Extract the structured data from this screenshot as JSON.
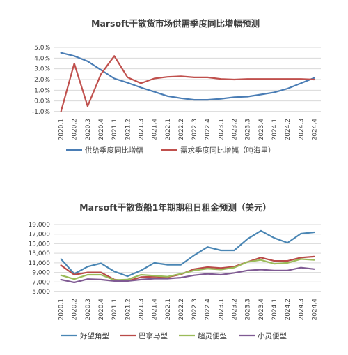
{
  "colors": {
    "supply": "#4a7db5",
    "demand": "#c0504d",
    "capesize": "#4a86b4",
    "panamax": "#b94a48",
    "supramax": "#9bbb59",
    "handysize": "#7f5a93",
    "grid": "#d9d9d9",
    "axis": "#bfbfbf"
  },
  "chart_data": [
    {
      "type": "line",
      "title": "Marsoft干散货市场供需季度同比增幅预测",
      "categories": [
        "2020.1",
        "2020.2",
        "2020.3",
        "2020.4",
        "2021.1",
        "2021.2",
        "2021.3",
        "2021.4",
        "2022.1",
        "2022.2",
        "2022.3",
        "2022.4",
        "2023.1",
        "2023.2",
        "2023.3",
        "2023.4",
        "2024.1",
        "2024.2",
        "2024.3",
        "2024.4"
      ],
      "y_ticks": [
        "5.0%",
        "4.0%",
        "3.0%",
        "2.0%",
        "1.0%",
        "0.0%",
        "-1.0%"
      ],
      "ylim": [
        -1.0,
        5.0
      ],
      "unit": "%",
      "grid": true,
      "legend_position": "bottom",
      "series": [
        {
          "name": "供给季度同比增幅",
          "color_key": "supply",
          "values": [
            4.5,
            4.2,
            3.7,
            2.9,
            2.1,
            1.7,
            1.25,
            0.85,
            0.45,
            0.25,
            0.1,
            0.1,
            0.2,
            0.35,
            0.4,
            0.6,
            0.8,
            1.15,
            1.65,
            2.15
          ]
        },
        {
          "name": "需求季度同比增幅（吨海里）",
          "color_key": "demand",
          "values": [
            -1.0,
            3.5,
            -0.5,
            2.5,
            4.2,
            2.2,
            1.65,
            2.1,
            2.25,
            2.3,
            2.2,
            2.2,
            2.05,
            2.0,
            2.05,
            2.05,
            2.05,
            2.05,
            2.05,
            2.0
          ]
        }
      ]
    },
    {
      "type": "line",
      "title": "Marsoft干散货船1年期期租日租金预测（美元）",
      "categories": [
        "2020.1",
        "2020.2",
        "2020.3",
        "2020.4",
        "2021.1",
        "2021.2",
        "2021.3",
        "2021.4",
        "2022.1",
        "2022.2",
        "2022.3",
        "2022.4",
        "2023.1",
        "2023.2",
        "2023.3",
        "2023.4",
        "2024.1",
        "2024.2",
        "2024.3",
        "2024.4"
      ],
      "y_ticks": [
        "19,000",
        "17,000",
        "15,000",
        "13,000",
        "11,000",
        "9,000",
        "7,000",
        "5,000"
      ],
      "ylim": [
        5000,
        19000
      ],
      "unit": "USD/day",
      "grid": true,
      "legend_position": "bottom",
      "series": [
        {
          "name": "好望角型",
          "color_key": "capesize",
          "values": [
            11800,
            8700,
            10200,
            10900,
            9200,
            8200,
            9400,
            11000,
            10600,
            10600,
            12600,
            14300,
            13600,
            13600,
            16000,
            17700,
            16200,
            15200,
            17100,
            17400
          ]
        },
        {
          "name": "巴拿马型",
          "color_key": "panamax",
          "values": [
            10500,
            8500,
            9000,
            9000,
            7500,
            7200,
            8000,
            8100,
            8000,
            8600,
            9700,
            10100,
            9900,
            10200,
            11200,
            12100,
            11400,
            11400,
            12100,
            12300
          ]
        },
        {
          "name": "超灵便型",
          "color_key": "supramax",
          "values": [
            8400,
            7600,
            8500,
            8500,
            7400,
            7500,
            8500,
            8300,
            8100,
            8700,
            9400,
            9800,
            9600,
            10000,
            11200,
            11600,
            10800,
            11000,
            11800,
            11600
          ]
        },
        {
          "name": "小灵便型",
          "color_key": "handysize",
          "values": [
            7500,
            6900,
            7600,
            7500,
            7200,
            7200,
            7500,
            7700,
            7700,
            7900,
            8400,
            8700,
            8500,
            8900,
            9400,
            9600,
            9400,
            9400,
            10000,
            9700
          ]
        }
      ]
    }
  ]
}
